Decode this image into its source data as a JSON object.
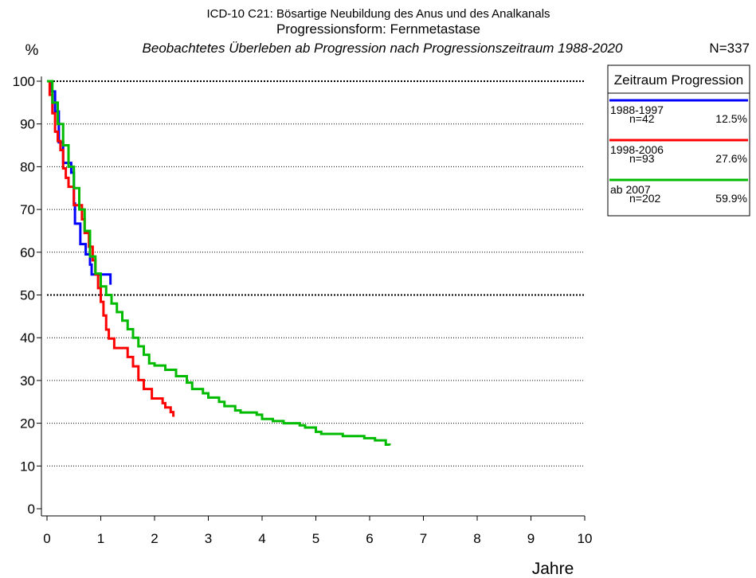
{
  "chart_data": {
    "type": "step",
    "title": "ICD-10 C21: Bösartige Neubildung des Anus und des Analkanals",
    "subtitle": "Progressionsform: Fernmetastase",
    "description": "Beobachtetes Überleben ab Progression nach Progressionszeitraum 1988-2020",
    "total_label": "N=337",
    "y_label": "%",
    "x_label": "Jahre",
    "legend_title": "Zeitraum Progression",
    "xlim": [
      0,
      10
    ],
    "xticks": [
      0,
      1,
      2,
      3,
      4,
      5,
      6,
      7,
      8,
      9,
      10
    ],
    "ylim": [
      0,
      100
    ],
    "yticks": [
      0,
      10,
      20,
      30,
      40,
      50,
      60,
      70,
      80,
      90,
      100
    ],
    "grid": true,
    "bold_gridlines": [
      50,
      100
    ],
    "series": [
      {
        "name": "1988-1997",
        "n_label": "n=42",
        "share_label": "12.5%",
        "color": "#0000ff",
        "x": [
          0,
          0.08,
          0.15,
          0.22,
          0.3,
          0.45,
          0.5,
          0.52,
          0.62,
          0.72,
          0.8,
          0.83,
          1.18,
          1.18
        ],
        "values": [
          100,
          97.6,
          92.9,
          85.7,
          80.9,
          78.6,
          71.4,
          66.7,
          61.9,
          59.5,
          57.1,
          54.8,
          54.8,
          52.4
        ]
      },
      {
        "name": "1998-2006",
        "n_label": "n=93",
        "share_label": "27.6%",
        "color": "#ff0000",
        "x": [
          0,
          0.05,
          0.1,
          0.15,
          0.2,
          0.25,
          0.3,
          0.35,
          0.4,
          0.5,
          0.65,
          0.7,
          0.78,
          0.85,
          0.9,
          0.95,
          1.0,
          1.05,
          1.1,
          1.15,
          1.25,
          1.5,
          1.6,
          1.7,
          1.8,
          1.95,
          2.15,
          2.2,
          2.3,
          2.35
        ],
        "values": [
          100,
          96.8,
          92.5,
          88.2,
          86,
          83.9,
          79.6,
          77.4,
          75.3,
          71,
          67.7,
          64.5,
          61.3,
          58.1,
          54.8,
          51.6,
          48.4,
          45.2,
          41.9,
          39.8,
          37.6,
          35.5,
          33.3,
          30.1,
          28,
          25.8,
          24.7,
          23.7,
          22.6,
          21.5
        ]
      },
      {
        "name": "ab 2007",
        "n_label": "n=202",
        "share_label": "59.9%",
        "color": "#00bb00",
        "x": [
          0,
          0.1,
          0.2,
          0.3,
          0.4,
          0.5,
          0.6,
          0.7,
          0.8,
          0.9,
          1.0,
          1.1,
          1.2,
          1.3,
          1.4,
          1.5,
          1.6,
          1.7,
          1.8,
          1.9,
          2.0,
          2.2,
          2.4,
          2.6,
          2.7,
          2.9,
          3.0,
          3.2,
          3.3,
          3.5,
          3.6,
          3.9,
          4.0,
          4.2,
          4.4,
          4.7,
          4.8,
          5.0,
          5.1,
          5.5,
          5.9,
          6.1,
          6.3,
          6.37
        ],
        "values": [
          100,
          95,
          90,
          85,
          80,
          75,
          70,
          65,
          59,
          55,
          52,
          50,
          48,
          46,
          44,
          42,
          40,
          38,
          36,
          34,
          33.5,
          32.5,
          31,
          29.5,
          28,
          27,
          26,
          25,
          24,
          23,
          22.5,
          22,
          21,
          20.5,
          20,
          19.5,
          19,
          18,
          17.5,
          17,
          16.5,
          16,
          15,
          14.8
        ]
      }
    ]
  }
}
